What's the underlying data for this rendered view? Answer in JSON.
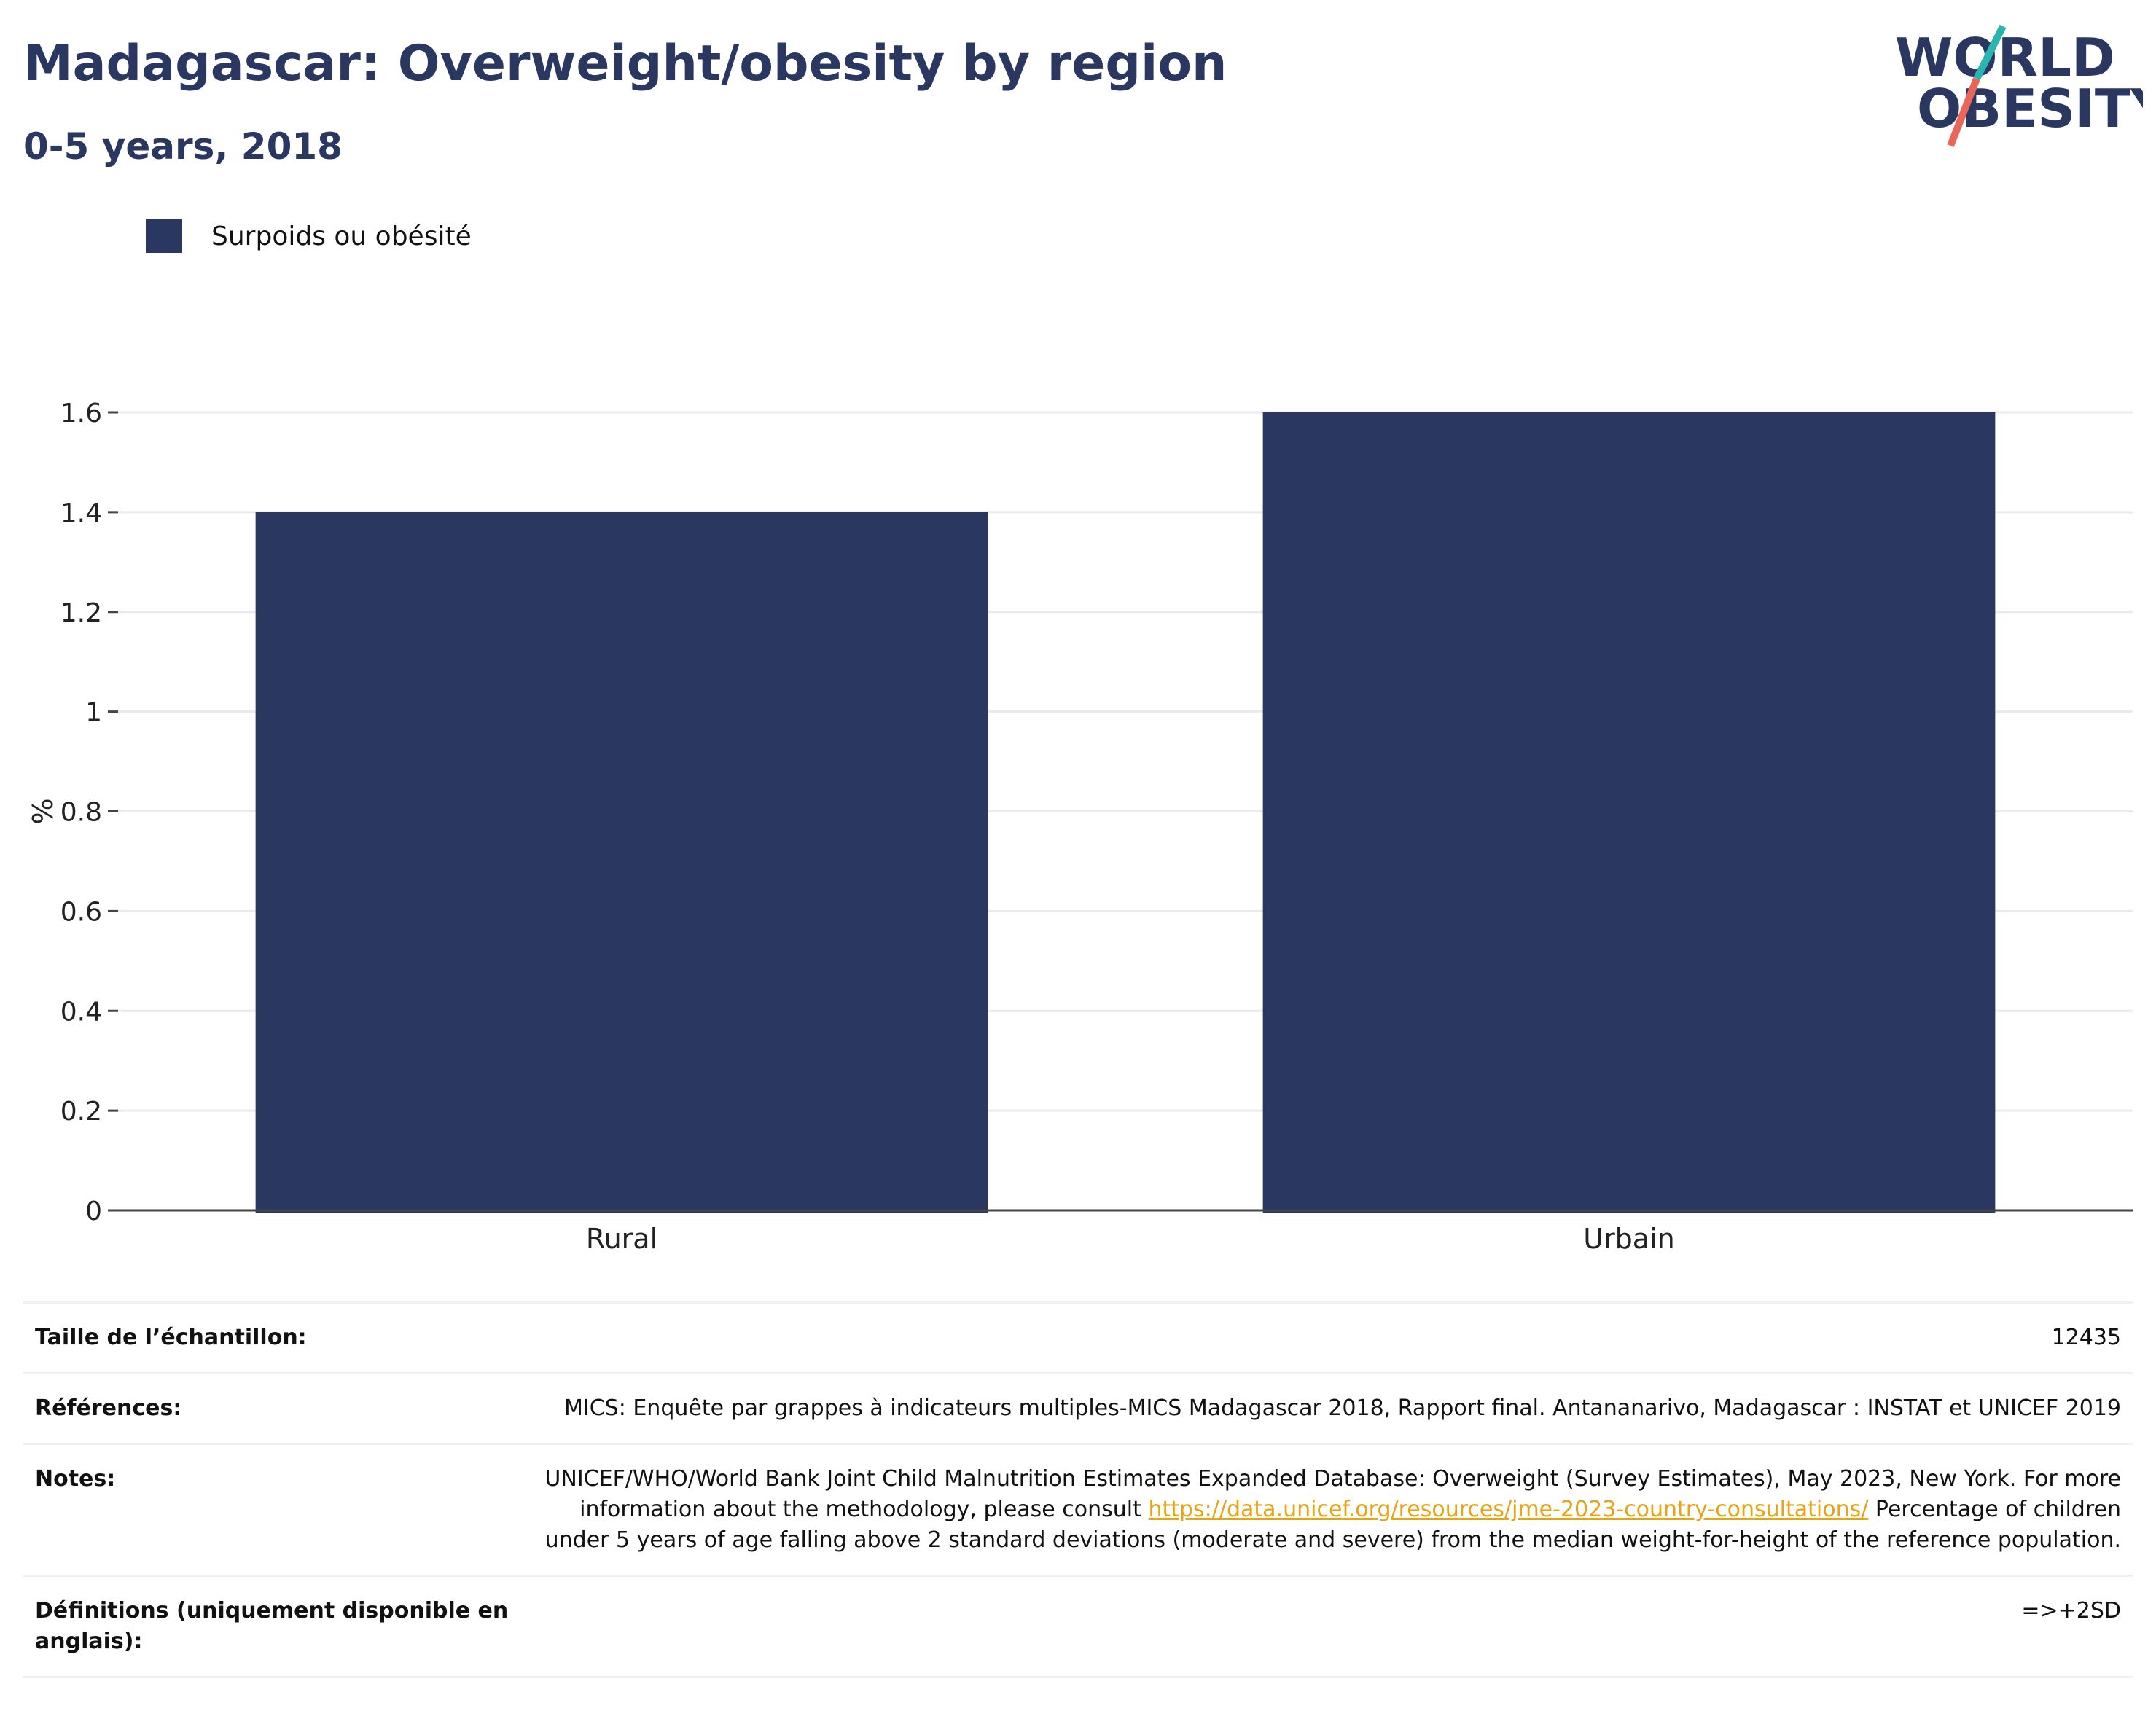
{
  "header": {
    "title": "Madagascar: Overweight/obesity by region",
    "subtitle": "0-5 years, 2018"
  },
  "logo": {
    "line1": "WORLD",
    "line2": "OBESITY",
    "text_color": "#2a3761",
    "slash_top_color": "#2bb5b0",
    "slash_bottom_color": "#e8675a"
  },
  "legend": {
    "label": "Surpoids ou obésité",
    "color": "#2a3761"
  },
  "chart_data": {
    "type": "bar",
    "categories": [
      "Rural",
      "Urbain"
    ],
    "series": [
      {
        "name": "Surpoids ou obésité",
        "values": [
          1.4,
          1.6
        ],
        "color": "#2a3761"
      }
    ],
    "ylabel": "%",
    "xlabel": "",
    "ylim": [
      0,
      1.6
    ],
    "yticks": [
      0,
      0.2,
      0.4,
      0.6,
      0.8,
      1,
      1.2,
      1.4,
      1.6
    ],
    "ytick_labels": [
      "0",
      "0.2",
      "0.4",
      "0.6",
      "0.8",
      "1",
      "1.2",
      "1.4",
      "1.6"
    ],
    "grid": true
  },
  "info": {
    "sample_size": {
      "label": "Taille de l’échantillon:",
      "value": "12435"
    },
    "references": {
      "label": "Références:",
      "value": "MICS: Enquête par grappes à indicateurs multiples-MICS Madagascar 2018, Rapport final. Antananarivo, Madagascar : INSTAT et UNICEF 2019"
    },
    "notes": {
      "label": "Notes:",
      "text_before": "UNICEF/WHO/World Bank Joint Child Malnutrition Estimates Expanded Database: Overweight (Survey Estimates), May 2023, New York. For more information about the methodology, please consult ",
      "link": "https://data.unicef.org/resources/jme-2023-country-consultations/",
      "text_after": " Percentage of children under 5 years of age falling above 2 standard deviations (moderate and severe) from the median weight-for-height of the reference population."
    },
    "definitions": {
      "label": "Définitions (uniquement disponible en anglais):",
      "value": "=>+2SD"
    }
  }
}
